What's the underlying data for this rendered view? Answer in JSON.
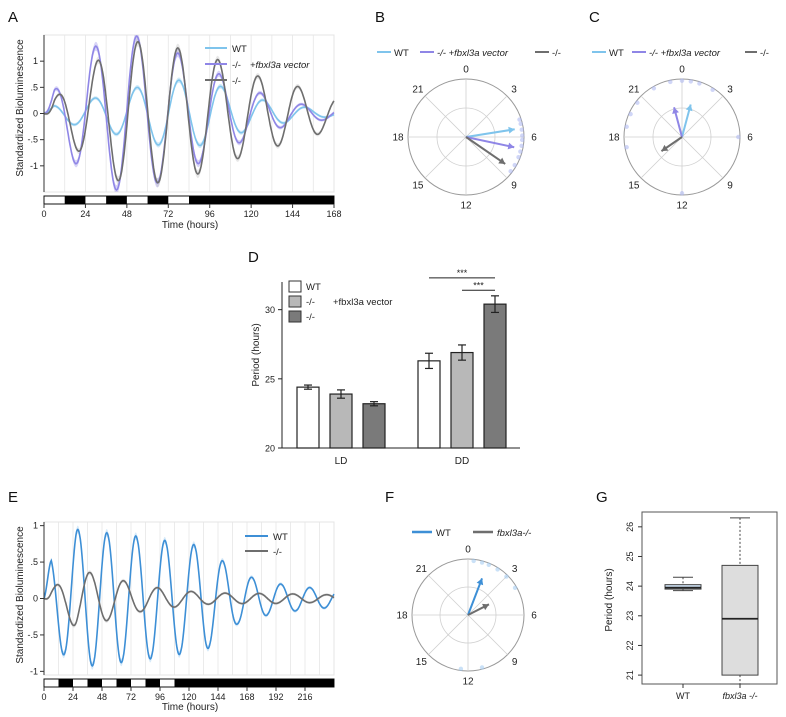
{
  "colors": {
    "wt_light": "#7fc4ec",
    "wt_blue": "#3d8fd6",
    "rescue": "#8f86e6",
    "mutant": "#6e6e6e",
    "bar_white": "#ffffff",
    "bar_light": "#b8b8b8",
    "bar_dark": "#7a7a7a",
    "box_blue": "#cfe3f5",
    "box_gray": "#dddddd",
    "grid": "#cccccc"
  },
  "panels": {
    "A": {
      "letter": "A",
      "ylabel": "Standardized Bioluminescence",
      "xlabel": "Time (hours)",
      "legend": [
        {
          "label": "WT",
          "label2": ""
        },
        {
          "label": "-/-",
          "label2": "+fbxl3a vector"
        },
        {
          "label": "-/-",
          "label2": ""
        }
      ]
    },
    "B": {
      "letter": "B",
      "legend": [
        {
          "label": "WT"
        },
        {
          "label": "-/-  +fbxl3a vector"
        },
        {
          "label": "-/-"
        }
      ]
    },
    "C": {
      "letter": "C",
      "legend": [
        {
          "label": "WT"
        },
        {
          "label": "-/-  +fbxl3a vector"
        },
        {
          "label": "-/-"
        }
      ]
    },
    "D": {
      "letter": "D",
      "ylabel": "Period (hours)",
      "legend": [
        {
          "label": "WT",
          "label2": ""
        },
        {
          "label": "-/-",
          "label2": "+fbxl3a vector"
        },
        {
          "label": "-/-",
          "label2": ""
        }
      ],
      "sig": [
        "***",
        "***"
      ]
    },
    "E": {
      "letter": "E",
      "ylabel": "Standardized Bioluminescence",
      "xlabel": "Time (hours)",
      "legend": [
        {
          "label": "WT"
        },
        {
          "label": "-/-"
        }
      ]
    },
    "F": {
      "letter": "F",
      "legend": [
        {
          "label": "WT"
        },
        {
          "label": "fbxl3a-/-"
        }
      ]
    },
    "G": {
      "letter": "G",
      "ylabel": "Period (hours)"
    }
  },
  "chart_data": [
    {
      "panel": "A",
      "type": "line",
      "xlim": [
        0,
        168
      ],
      "ylim": [
        -1.5,
        1.5
      ],
      "x_ticks": [
        0,
        24,
        48,
        72,
        96,
        120,
        144,
        168
      ],
      "y_ticks": [
        -1,
        -0.5,
        0,
        0.5,
        1
      ],
      "y_tick_labels": [
        "-1",
        "-.5",
        "0",
        ".5",
        "1"
      ],
      "light_dark_bar": [
        [
          0,
          12,
          "light"
        ],
        [
          12,
          24,
          "dark"
        ],
        [
          24,
          36,
          "light"
        ],
        [
          36,
          48,
          "dark"
        ],
        [
          48,
          60,
          "light"
        ],
        [
          60,
          72,
          "dark"
        ],
        [
          72,
          84,
          "light"
        ],
        [
          84,
          168,
          "dark"
        ]
      ],
      "series": [
        {
          "name": "WT",
          "amplitude": [
            0.12,
            0.25,
            0.45,
            0.65,
            0.6,
            0.3,
            0.15,
            0.05
          ],
          "phase_hours": 5,
          "period_hours": 24.4
        },
        {
          "name": "-/- +fbxl3a vector",
          "amplitude": [
            0.2,
            1.2,
            1.55,
            1.25,
            0.85,
            0.45,
            0.2,
            0.1
          ],
          "phase_hours": 6,
          "period_hours": 23.9
        },
        {
          "name": "-/-",
          "amplitude": [
            0.1,
            0.85,
            1.4,
            1.3,
            1.1,
            0.75,
            0.55,
            0.3
          ],
          "phase_hours": 8,
          "period_hours": 23.2
        }
      ]
    },
    {
      "panel": "B",
      "type": "scatter",
      "polar_hours": 24,
      "ring_labels": [
        "0",
        "3",
        "6",
        "9",
        "12",
        "15",
        "18",
        "21"
      ],
      "vectors": [
        {
          "name": "WT",
          "angle_hours": 5.4,
          "length": 0.85
        },
        {
          "name": "-/- +fbxl3a vector",
          "angle_hours": 6.8,
          "length": 0.85
        },
        {
          "name": "-/-",
          "angle_hours": 8.3,
          "length": 0.82
        }
      ],
      "points_hours": [
        4.8,
        5.1,
        5.5,
        5.9,
        6.2,
        6.6,
        7.0,
        7.4,
        8.0,
        8.5
      ]
    },
    {
      "panel": "C",
      "type": "scatter",
      "polar_hours": 24,
      "ring_labels": [
        "0",
        "3",
        "6",
        "9",
        "12",
        "15",
        "18",
        "21"
      ],
      "vectors": [
        {
          "name": "WT",
          "angle_hours": 1.0,
          "length": 0.58
        },
        {
          "name": "-/- +fbxl3a vector",
          "angle_hours": 23.0,
          "length": 0.53
        },
        {
          "name": "-/-",
          "angle_hours": 15.7,
          "length": 0.43
        }
      ],
      "points_hours": [
        23.2,
        0.0,
        0.6,
        1.2,
        2.2,
        22.0,
        20.5,
        19.6,
        18.7,
        17.3,
        12.0,
        6.0
      ]
    },
    {
      "panel": "D",
      "type": "bar",
      "categories": [
        "LD",
        "DD"
      ],
      "ylim": [
        20,
        32
      ],
      "y_ticks": [
        20,
        25,
        30
      ],
      "series": [
        {
          "name": "WT",
          "values": [
            24.4,
            26.3
          ],
          "errors": [
            0.15,
            0.55
          ]
        },
        {
          "name": "-/- +fbxl3a vector",
          "values": [
            23.9,
            26.9
          ],
          "errors": [
            0.3,
            0.55
          ]
        },
        {
          "name": "-/-",
          "values": [
            23.2,
            30.4
          ],
          "errors": [
            0.15,
            0.6
          ]
        }
      ]
    },
    {
      "panel": "E",
      "type": "line",
      "xlim": [
        0,
        240
      ],
      "ylim": [
        -1.05,
        1.05
      ],
      "x_ticks": [
        0,
        24,
        48,
        72,
        96,
        120,
        144,
        168,
        192,
        216
      ],
      "y_ticks": [
        -1,
        -0.5,
        0,
        0.5,
        1
      ],
      "y_tick_labels": [
        "-1",
        "-.5",
        "0",
        ".5",
        "1"
      ],
      "light_dark_bar": [
        [
          0,
          12,
          "light"
        ],
        [
          12,
          24,
          "dark"
        ],
        [
          24,
          36,
          "light"
        ],
        [
          36,
          48,
          "dark"
        ],
        [
          48,
          60,
          "light"
        ],
        [
          60,
          72,
          "dark"
        ],
        [
          72,
          84,
          "light"
        ],
        [
          84,
          96,
          "dark"
        ],
        [
          96,
          108,
          "light"
        ],
        [
          108,
          240,
          "dark"
        ]
      ],
      "series": [
        {
          "name": "WT",
          "amplitude": [
            0.5,
            0.95,
            0.9,
            0.85,
            0.78,
            0.72,
            0.35,
            0.22,
            0.16,
            0.12
          ],
          "phase_hours": 4,
          "period_hours": 24
        },
        {
          "name": "-/-",
          "amplitude": [
            0.05,
            0.4,
            0.3,
            0.18,
            0.12,
            0.08,
            0.07,
            0.07,
            0.06,
            0.05
          ],
          "phase_hours": 10,
          "period_hours": 28
        }
      ]
    },
    {
      "panel": "F",
      "type": "scatter",
      "polar_hours": 24,
      "ring_labels": [
        "0",
        "3",
        "6",
        "9",
        "12",
        "15",
        "18",
        "21"
      ],
      "vectors": [
        {
          "name": "WT",
          "angle_hours": 1.4,
          "length": 0.7
        },
        {
          "name": "fbxl3a-/-",
          "angle_hours": 4.2,
          "length": 0.42
        }
      ],
      "points_hours": [
        0.4,
        1.0,
        1.5,
        2.2,
        3.0,
        4.0,
        11.0,
        12.5
      ]
    },
    {
      "panel": "G",
      "type": "bar",
      "categories": [
        "WT",
        "fbxl3a -/-"
      ],
      "ylim": [
        20.7,
        26.5
      ],
      "y_ticks": [
        21,
        22,
        23,
        24,
        25,
        26
      ],
      "boxes": [
        {
          "name": "WT",
          "min": 23.85,
          "q1": 23.9,
          "median": 23.95,
          "q3": 24.05,
          "max": 24.3
        },
        {
          "name": "fbxl3a -/-",
          "min": 20.7,
          "q1": 21.0,
          "median": 22.9,
          "q3": 24.7,
          "max": 26.3
        }
      ]
    }
  ]
}
